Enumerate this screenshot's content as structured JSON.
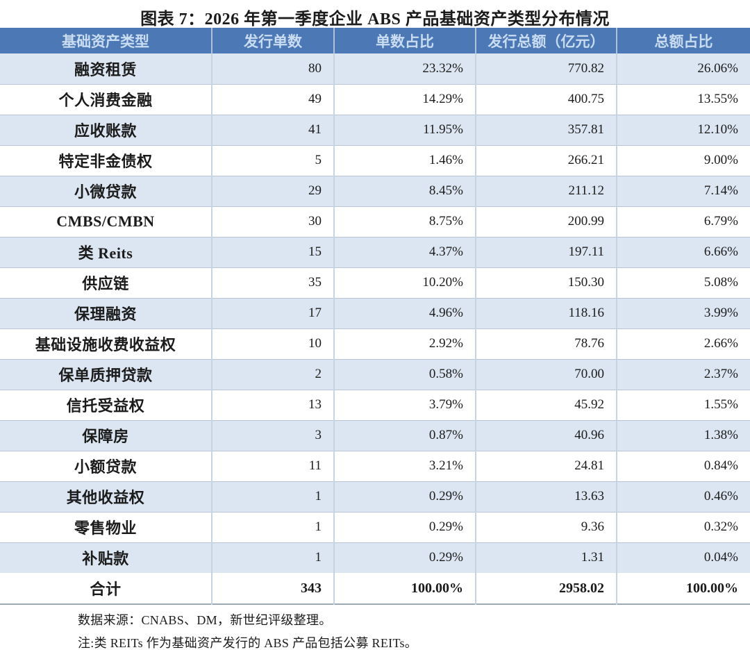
{
  "title": "图表 7：2026 年第一季度企业 ABS 产品基础资产类型分布情况",
  "colors": {
    "header_bg": "#4C79B5",
    "header_text": "#C9DCF1",
    "row_alt_bg": "#DCE6F2",
    "row_bg": "#FFFFFF",
    "v_border": "#C7D3E2",
    "h_border": "#B7C4D4",
    "strong_border": "#9AA8B8",
    "text": "#1B1B1B"
  },
  "chart_data": {
    "type": "table",
    "title": "图表 7：2026 年第一季度企业 ABS 产品基础资产类型分布情况",
    "columns": [
      "基础资产类型",
      "发行单数",
      "单数占比",
      "发行总额（亿元）",
      "总额占比"
    ],
    "rows": [
      [
        "融资租赁",
        "80",
        "23.32%",
        "770.82",
        "26.06%"
      ],
      [
        "个人消费金融",
        "49",
        "14.29%",
        "400.75",
        "13.55%"
      ],
      [
        "应收账款",
        "41",
        "11.95%",
        "357.81",
        "12.10%"
      ],
      [
        "特定非金债权",
        "5",
        "1.46%",
        "266.21",
        "9.00%"
      ],
      [
        "小微贷款",
        "29",
        "8.45%",
        "211.12",
        "7.14%"
      ],
      [
        "CMBS/CMBN",
        "30",
        "8.75%",
        "200.99",
        "6.79%"
      ],
      [
        "类 Reits",
        "15",
        "4.37%",
        "197.11",
        "6.66%"
      ],
      [
        "供应链",
        "35",
        "10.20%",
        "150.30",
        "5.08%"
      ],
      [
        "保理融资",
        "17",
        "4.96%",
        "118.16",
        "3.99%"
      ],
      [
        "基础设施收费收益权",
        "10",
        "2.92%",
        "78.76",
        "2.66%"
      ],
      [
        "保单质押贷款",
        "2",
        "0.58%",
        "70.00",
        "2.37%"
      ],
      [
        "信托受益权",
        "13",
        "3.79%",
        "45.92",
        "1.55%"
      ],
      [
        "保障房",
        "3",
        "0.87%",
        "40.96",
        "1.38%"
      ],
      [
        "小额贷款",
        "11",
        "3.21%",
        "24.81",
        "0.84%"
      ],
      [
        "其他收益权",
        "1",
        "0.29%",
        "13.63",
        "0.46%"
      ],
      [
        "零售物业",
        "1",
        "0.29%",
        "9.36",
        "0.32%"
      ],
      [
        "补贴款",
        "1",
        "0.29%",
        "1.31",
        "0.04%"
      ]
    ],
    "total": [
      "合计",
      "343",
      "100.00%",
      "2958.02",
      "100.00%"
    ]
  },
  "notes": {
    "source": "数据来源：CNABS、DM，新世纪评级整理。",
    "remark": "注:类 REITs 作为基础资产发行的 ABS 产品包括公募 REITs。"
  }
}
